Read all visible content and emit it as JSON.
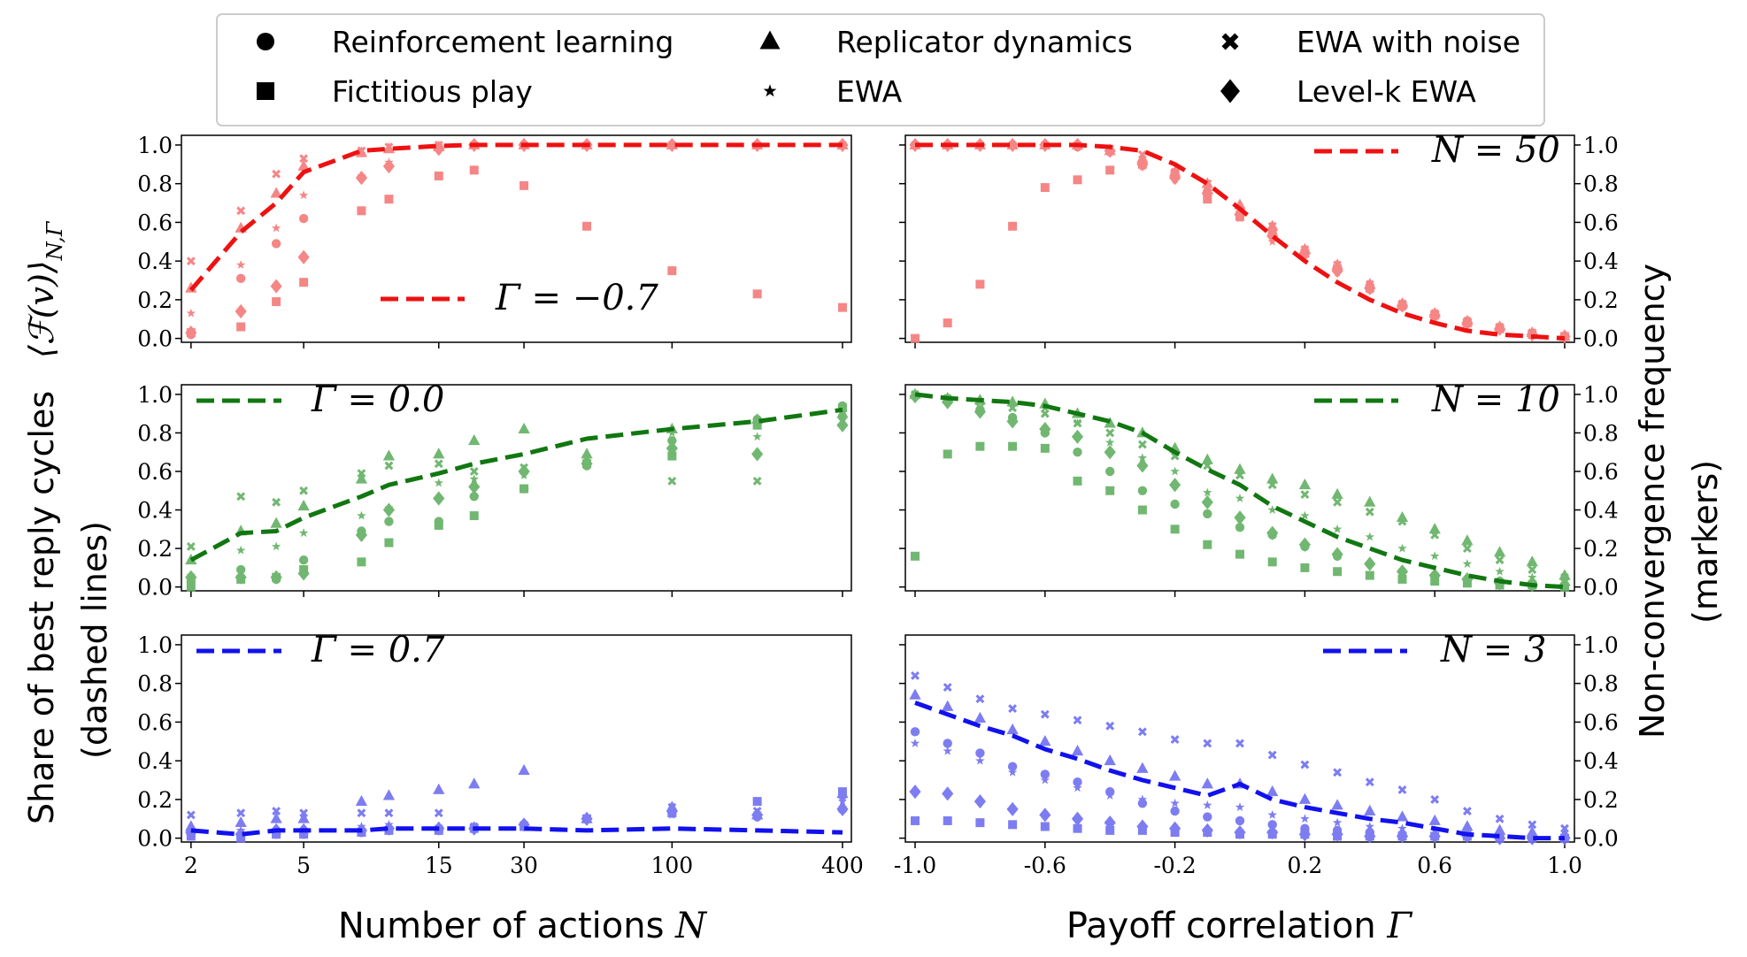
{
  "legend": [
    {
      "marker": "circle",
      "label": "Reinforcement learning"
    },
    {
      "marker": "triangle",
      "label": "Replicator dynamics"
    },
    {
      "marker": "cross",
      "label": "EWA with noise"
    },
    {
      "marker": "square",
      "label": "Fictitious play"
    },
    {
      "marker": "star",
      "label": "EWA"
    },
    {
      "marker": "diamond",
      "label": "Level-k EWA"
    }
  ],
  "axes": {
    "left_ylabel_line1": "Share of best reply cycles",
    "left_ylabel_line2": "(dashed lines)",
    "left_ylabel_math": "⟨ℱ(v)⟩",
    "left_ylabel_sub": "N,Γ",
    "right_ylabel_line1": "Non-convergence frequency",
    "right_ylabel_line2": "(markers)",
    "xlabel_left_text": "Number of actions ",
    "xlabel_left_var": "N",
    "xlabel_right_text": "Payoff correlation ",
    "xlabel_right_var": "Γ",
    "y_ticks": [
      "0.0",
      "0.2",
      "0.4",
      "0.6",
      "0.8",
      "1.0"
    ],
    "x_ticks_left": [
      "2",
      "5",
      "15",
      "30",
      "100",
      "400"
    ],
    "x_ticks_right": [
      "-1.0",
      "-0.6",
      "-0.2",
      "0.2",
      "0.6",
      "1.0"
    ]
  },
  "colors": {
    "red": "#ee1111",
    "green": "#117711",
    "blue": "#1111ee",
    "red_marker": "#f47a7a",
    "green_marker": "#62b062",
    "blue_marker": "#7070f0"
  },
  "panel_labels": {
    "row0_left": "Γ = −0.7",
    "row1_left": "Γ = 0.0",
    "row2_left": "Γ = 0.7",
    "row0_right": "N = 50",
    "row1_right": "N = 10",
    "row2_right": "N = 3"
  },
  "chart_data": [
    {
      "type": "line",
      "panel": "row0_left",
      "color": "red",
      "x_scale": "log",
      "x": [
        2,
        3,
        4,
        5,
        8,
        10,
        15,
        20,
        30,
        50,
        100,
        200,
        400
      ],
      "ylim": [
        0,
        1
      ],
      "line": [
        0.25,
        0.55,
        0.7,
        0.86,
        0.97,
        0.98,
        0.995,
        1,
        1,
        1,
        1,
        1,
        1
      ],
      "markers": {
        "circle": [
          0.02,
          0.31,
          0.49,
          0.62,
          0.83,
          0.89,
          0.99,
          1,
          1,
          1,
          1,
          1,
          1
        ],
        "triangle": [
          0.26,
          0.57,
          0.75,
          0.89,
          0.96,
          0.98,
          0.99,
          1,
          1,
          1,
          1,
          1,
          1
        ],
        "cross": [
          0.4,
          0.66,
          0.85,
          0.93,
          0.97,
          0.99,
          1,
          1,
          1,
          1,
          1,
          1,
          1
        ],
        "square": [
          0.03,
          0.06,
          0.19,
          0.29,
          0.66,
          0.72,
          0.84,
          0.87,
          0.79,
          0.58,
          0.35,
          0.23,
          0.16
        ],
        "star": [
          0.13,
          0.38,
          0.57,
          0.74,
          0.84,
          0.91,
          0.98,
          1,
          1,
          1,
          1,
          1,
          1
        ],
        "diamond": [
          0.03,
          0.14,
          0.27,
          0.42,
          0.83,
          0.89,
          0.98,
          1,
          1,
          1,
          1,
          1,
          1
        ]
      }
    },
    {
      "type": "line",
      "panel": "row1_left",
      "color": "green",
      "x_scale": "log",
      "x": [
        2,
        3,
        4,
        5,
        8,
        10,
        15,
        20,
        30,
        50,
        100,
        200,
        400
      ],
      "ylim": [
        0,
        1
      ],
      "line": [
        0.14,
        0.28,
        0.29,
        0.36,
        0.47,
        0.53,
        0.59,
        0.64,
        0.69,
        0.77,
        0.82,
        0.86,
        0.92
      ],
      "markers": {
        "circle": [
          0.03,
          0.09,
          0.04,
          0.14,
          0.29,
          0.34,
          0.34,
          0.47,
          0.51,
          0.63,
          0.76,
          0.87,
          0.94
        ],
        "triangle": [
          0.14,
          0.29,
          0.33,
          0.42,
          0.56,
          0.68,
          0.69,
          0.76,
          0.82,
          0.69,
          0.82,
          0.87,
          0.9
        ],
        "cross": [
          0.21,
          0.47,
          0.44,
          0.5,
          0.59,
          0.63,
          0.64,
          0.6,
          0.62,
          0.67,
          0.55,
          0.55,
          0.86
        ],
        "square": [
          0.0,
          0.04,
          0.05,
          0.09,
          0.13,
          0.23,
          0.32,
          0.37,
          0.51,
          0.64,
          0.68,
          0.84,
          0.93
        ],
        "star": [
          0.06,
          0.19,
          0.21,
          0.28,
          0.37,
          0.41,
          0.54,
          0.56,
          0.58,
          0.65,
          0.8,
          0.78,
          0.88
        ],
        "diamond": [
          0.05,
          0.05,
          0.05,
          0.07,
          0.27,
          0.4,
          0.46,
          0.52,
          0.6,
          0.64,
          0.72,
          0.69,
          0.84
        ]
      }
    },
    {
      "type": "line",
      "panel": "row2_left",
      "color": "blue",
      "x_scale": "log",
      "x": [
        2,
        3,
        4,
        5,
        8,
        10,
        15,
        20,
        30,
        50,
        100,
        200,
        400
      ],
      "ylim": [
        0,
        1
      ],
      "line": [
        0.04,
        0.02,
        0.04,
        0.04,
        0.04,
        0.05,
        0.05,
        0.05,
        0.05,
        0.04,
        0.05,
        0.04,
        0.03
      ],
      "markers": {
        "circle": [
          0.02,
          0.01,
          0.02,
          0.02,
          0.03,
          0.04,
          0.04,
          0.05,
          0.07,
          0.1,
          0.13,
          0.11,
          0.22
        ],
        "triangle": [
          0.06,
          0.08,
          0.1,
          0.1,
          0.19,
          0.22,
          0.25,
          0.28,
          0.35,
          0.1,
          0.16,
          0.12,
          0.23
        ],
        "cross": [
          0.12,
          0.13,
          0.14,
          0.13,
          0.13,
          0.13,
          0.13,
          0.06,
          0.07,
          0.1,
          0.16,
          0.14,
          0.15
        ],
        "square": [
          0.01,
          0.0,
          0.02,
          0.02,
          0.03,
          0.04,
          0.04,
          0.05,
          0.06,
          0.1,
          0.13,
          0.19,
          0.24
        ],
        "star": [
          0.04,
          0.04,
          0.04,
          0.04,
          0.06,
          0.07,
          0.06,
          0.06,
          0.07,
          0.1,
          0.12,
          0.13,
          0.19
        ],
        "diamond": [
          0.03,
          0.02,
          0.04,
          0.04,
          0.04,
          0.05,
          0.05,
          0.05,
          0.07,
          0.1,
          0.14,
          0.12,
          0.15
        ]
      }
    },
    {
      "type": "line",
      "panel": "row0_right",
      "color": "red",
      "x": [
        -1.0,
        -0.9,
        -0.8,
        -0.7,
        -0.6,
        -0.5,
        -0.4,
        -0.3,
        -0.2,
        -0.1,
        0.0,
        0.1,
        0.2,
        0.3,
        0.4,
        0.5,
        0.6,
        0.7,
        0.8,
        0.9,
        1.0
      ],
      "ylim": [
        0,
        1
      ],
      "line": [
        1.0,
        1.0,
        1.0,
        1.0,
        1.0,
        1.0,
        0.99,
        0.97,
        0.9,
        0.8,
        0.67,
        0.53,
        0.4,
        0.29,
        0.2,
        0.13,
        0.08,
        0.04,
        0.02,
        0.01,
        0.0
      ],
      "markers": {
        "circle": [
          1,
          1,
          1,
          1,
          1,
          0.99,
          0.97,
          0.91,
          0.84,
          0.76,
          0.64,
          0.54,
          0.45,
          0.36,
          0.27,
          0.17,
          0.12,
          0.09,
          0.05,
          0.02,
          0.01
        ],
        "triangle": [
          1,
          1,
          1,
          1,
          1,
          1,
          0.97,
          0.93,
          0.86,
          0.8,
          0.69,
          0.58,
          0.46,
          0.38,
          0.28,
          0.18,
          0.13,
          0.09,
          0.06,
          0.03,
          0.01
        ],
        "cross": [
          1,
          1,
          1,
          1,
          1,
          1,
          0.98,
          0.95,
          0.86,
          0.8,
          0.67,
          0.58,
          0.46,
          0.38,
          0.28,
          0.18,
          0.13,
          0.09,
          0.06,
          0.03,
          0.01
        ],
        "square": [
          0.0,
          0.08,
          0.28,
          0.58,
          0.78,
          0.82,
          0.87,
          0.9,
          0.85,
          0.72,
          0.63,
          0.55,
          0.44,
          0.36,
          0.26,
          0.17,
          0.12,
          0.08,
          0.05,
          0.02,
          0.01
        ],
        "star": [
          1,
          1,
          1,
          1,
          1,
          1,
          0.96,
          0.89,
          0.82,
          0.72,
          0.62,
          0.5,
          0.43,
          0.34,
          0.25,
          0.16,
          0.11,
          0.08,
          0.05,
          0.02,
          0.01
        ],
        "diamond": [
          1,
          1,
          1,
          1,
          1,
          1,
          0.97,
          0.9,
          0.83,
          0.75,
          0.64,
          0.53,
          0.44,
          0.35,
          0.26,
          0.17,
          0.12,
          0.08,
          0.05,
          0.02,
          0.01
        ]
      }
    },
    {
      "type": "line",
      "panel": "row1_right",
      "color": "green",
      "x": [
        -1.0,
        -0.9,
        -0.8,
        -0.7,
        -0.6,
        -0.5,
        -0.4,
        -0.3,
        -0.2,
        -0.1,
        0.0,
        0.1,
        0.2,
        0.3,
        0.4,
        0.5,
        0.6,
        0.7,
        0.8,
        0.9,
        1.0
      ],
      "ylim": [
        0,
        1
      ],
      "line": [
        1.0,
        0.98,
        0.97,
        0.96,
        0.94,
        0.9,
        0.86,
        0.8,
        0.7,
        0.61,
        0.53,
        0.42,
        0.34,
        0.26,
        0.2,
        0.14,
        0.1,
        0.06,
        0.03,
        0.01,
        0.0
      ],
      "markers": {
        "circle": [
          0.99,
          0.97,
          0.92,
          0.88,
          0.8,
          0.7,
          0.6,
          0.5,
          0.43,
          0.38,
          0.31,
          0.27,
          0.21,
          0.16,
          0.12,
          0.08,
          0.06,
          0.04,
          0.03,
          0.02,
          0.01
        ],
        "triangle": [
          1,
          0.98,
          0.97,
          0.96,
          0.95,
          0.9,
          0.85,
          0.8,
          0.72,
          0.66,
          0.61,
          0.56,
          0.53,
          0.48,
          0.44,
          0.36,
          0.3,
          0.24,
          0.18,
          0.13,
          0.06
        ],
        "cross": [
          1,
          0.98,
          0.96,
          0.93,
          0.9,
          0.85,
          0.8,
          0.74,
          0.68,
          0.63,
          0.58,
          0.53,
          0.48,
          0.44,
          0.39,
          0.34,
          0.27,
          0.2,
          0.14,
          0.09,
          0.05
        ],
        "square": [
          0.16,
          0.69,
          0.73,
          0.73,
          0.72,
          0.55,
          0.5,
          0.4,
          0.3,
          0.22,
          0.17,
          0.13,
          0.1,
          0.08,
          0.06,
          0.04,
          0.03,
          0.02,
          0.01,
          0.01,
          0.0
        ],
        "star": [
          1,
          0.98,
          0.97,
          0.95,
          0.93,
          0.85,
          0.75,
          0.67,
          0.6,
          0.49,
          0.46,
          0.4,
          0.37,
          0.3,
          0.26,
          0.2,
          0.16,
          0.12,
          0.08,
          0.05,
          0.03
        ],
        "diamond": [
          0.99,
          0.96,
          0.91,
          0.86,
          0.82,
          0.78,
          0.7,
          0.63,
          0.53,
          0.44,
          0.36,
          0.28,
          0.22,
          0.17,
          0.12,
          0.08,
          0.06,
          0.04,
          0.02,
          0.01,
          0.01
        ]
      }
    },
    {
      "type": "line",
      "panel": "row2_right",
      "color": "blue",
      "x": [
        -1.0,
        -0.9,
        -0.8,
        -0.7,
        -0.6,
        -0.5,
        -0.4,
        -0.3,
        -0.2,
        -0.1,
        0.0,
        0.1,
        0.2,
        0.3,
        0.4,
        0.5,
        0.6,
        0.7,
        0.8,
        0.9,
        1.0
      ],
      "ylim": [
        0,
        1
      ],
      "line": [
        0.7,
        0.64,
        0.58,
        0.53,
        0.46,
        0.41,
        0.35,
        0.3,
        0.26,
        0.22,
        0.28,
        0.2,
        0.16,
        0.13,
        0.1,
        0.08,
        0.05,
        0.02,
        0.01,
        0.0,
        0.0
      ],
      "markers": {
        "circle": [
          0.55,
          0.49,
          0.44,
          0.37,
          0.33,
          0.29,
          0.24,
          0.18,
          0.14,
          0.11,
          0.09,
          0.07,
          0.05,
          0.04,
          0.03,
          0.02,
          0.01,
          0.01,
          0.01,
          0.0,
          0.0
        ],
        "triangle": [
          0.74,
          0.68,
          0.62,
          0.56,
          0.5,
          0.45,
          0.4,
          0.36,
          0.32,
          0.28,
          0.28,
          0.24,
          0.2,
          0.17,
          0.14,
          0.11,
          0.09,
          0.06,
          0.04,
          0.03,
          0.02
        ],
        "cross": [
          0.84,
          0.78,
          0.72,
          0.67,
          0.64,
          0.61,
          0.58,
          0.55,
          0.51,
          0.49,
          0.49,
          0.43,
          0.38,
          0.34,
          0.29,
          0.25,
          0.2,
          0.14,
          0.1,
          0.07,
          0.05
        ],
        "square": [
          0.09,
          0.09,
          0.08,
          0.07,
          0.06,
          0.05,
          0.04,
          0.04,
          0.03,
          0.03,
          0.02,
          0.02,
          0.02,
          0.01,
          0.01,
          0.01,
          0.01,
          0.01,
          0.0,
          0.0,
          0.0
        ],
        "star": [
          0.49,
          0.45,
          0.4,
          0.34,
          0.3,
          0.26,
          0.22,
          0.2,
          0.18,
          0.17,
          0.16,
          0.12,
          0.1,
          0.08,
          0.06,
          0.05,
          0.04,
          0.03,
          0.02,
          0.01,
          0.01
        ],
        "diamond": [
          0.24,
          0.23,
          0.19,
          0.15,
          0.12,
          0.1,
          0.08,
          0.06,
          0.05,
          0.04,
          0.03,
          0.03,
          0.02,
          0.02,
          0.01,
          0.01,
          0.01,
          0.01,
          0.0,
          0.0,
          0.0
        ]
      }
    }
  ]
}
